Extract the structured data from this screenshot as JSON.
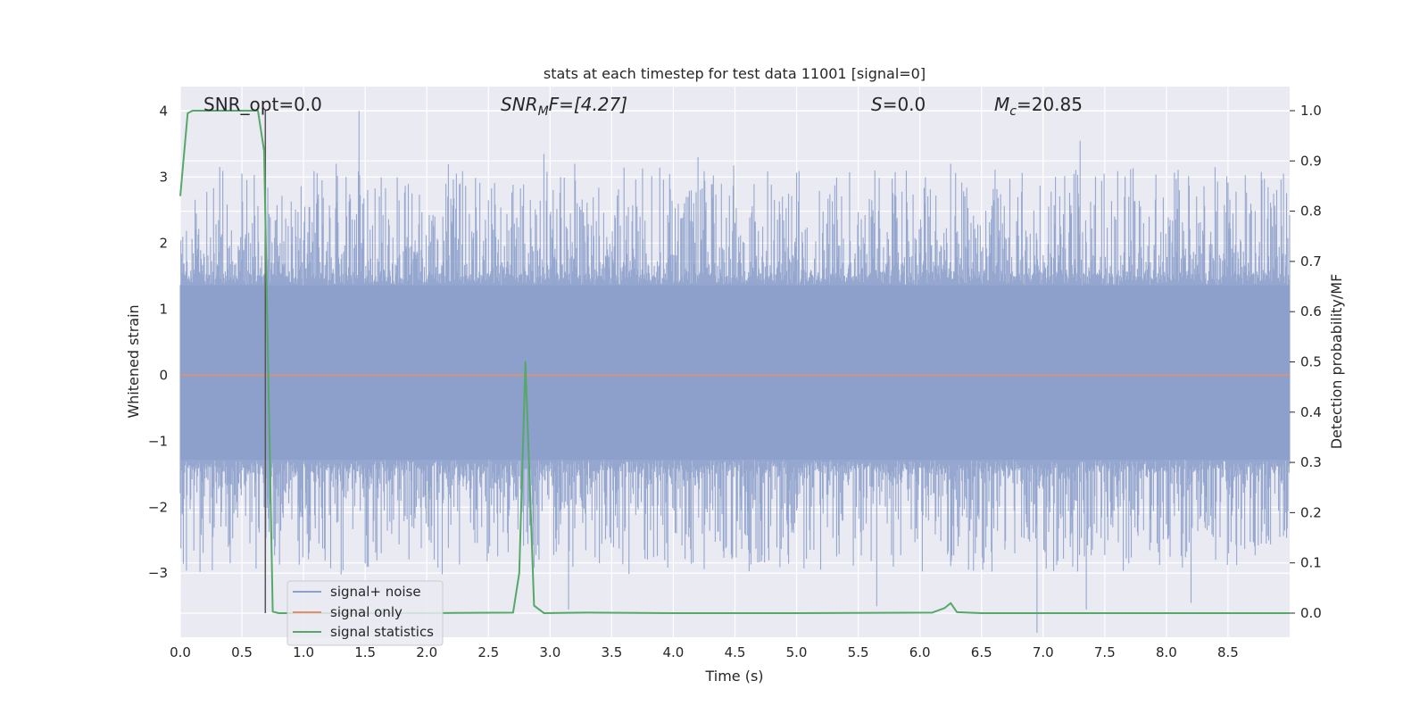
{
  "chart_data": {
    "type": "line",
    "title": "stats at each timestep for test data 11001 [signal=0]",
    "xlabel": "Time (s)",
    "ylabel_left": "Whitened strain",
    "ylabel_right": "Detection probability/MF",
    "xlim": [
      0.0,
      9.0
    ],
    "ylim_left": [
      -3.97,
      4.37
    ],
    "ylim_right": [
      -0.048,
      1.048
    ],
    "x_ticks": [
      "0.0",
      "0.5",
      "1.0",
      "1.5",
      "2.0",
      "2.5",
      "3.0",
      "3.5",
      "4.0",
      "4.5",
      "5.0",
      "5.5",
      "6.0",
      "6.5",
      "7.0",
      "7.5",
      "8.0",
      "8.5"
    ],
    "y_ticks_left": [
      "4",
      "3",
      "2",
      "1",
      "0",
      "−1",
      "−2",
      "−3"
    ],
    "y_ticks_right": [
      "1.0",
      "0.9",
      "0.8",
      "0.7",
      "0.6",
      "0.5",
      "0.4",
      "0.3",
      "0.2",
      "0.1",
      "0.0"
    ],
    "grid": true,
    "legend_position": "lower-left",
    "annotations": {
      "snr_opt": "SNR_opt=0.0",
      "snr_mf_main": "SNR",
      "snr_mf_sub": "M",
      "snr_mf_rest": "F=[4.27]",
      "s_italic": "S",
      "s_rest": "=0.0",
      "mc_main": "M",
      "mc_sub": "c",
      "mc_rest": "=20.85"
    },
    "marker_time": 0.69,
    "series": [
      {
        "name": "signal+ noise",
        "color": "#8da0cb",
        "description_of_values": "noise amplitude envelope",
        "envelope_hi": 1.7,
        "envelope_lo": -1.6,
        "peaks_hi": [
          {
            "x": 0.5,
            "y": 3.05
          },
          {
            "x": 1.45,
            "y": 4.0
          },
          {
            "x": 1.15,
            "y": 2.95
          },
          {
            "x": 2.95,
            "y": 3.35
          },
          {
            "x": 3.2,
            "y": 3.2
          },
          {
            "x": 4.2,
            "y": 3.3
          },
          {
            "x": 7.3,
            "y": 3.55
          },
          {
            "x": 8.95,
            "y": 3.05
          }
        ],
        "peaks_lo": [
          {
            "x": 1.5,
            "y": -2.85
          },
          {
            "x": 3.15,
            "y": -3.55
          },
          {
            "x": 5.65,
            "y": -3.5
          },
          {
            "x": 6.95,
            "y": -3.9
          },
          {
            "x": 7.35,
            "y": -3.55
          },
          {
            "x": 8.2,
            "y": -3.45
          }
        ]
      },
      {
        "name": "signal only",
        "color": "#e3906a",
        "x": [
          0.0,
          9.0
        ],
        "y": [
          0.0,
          0.0
        ]
      },
      {
        "name": "signal statistics",
        "color": "#55a868",
        "x": [
          0.0,
          0.06,
          0.1,
          0.15,
          0.3,
          0.5,
          0.63,
          0.68,
          0.75,
          0.8,
          1.0,
          2.0,
          2.7,
          2.75,
          2.8,
          2.87,
          2.95,
          3.3,
          4.0,
          5.0,
          6.1,
          6.2,
          6.25,
          6.3,
          6.5,
          8.0,
          9.0
        ],
        "y": [
          0.83,
          0.995,
          1.0,
          1.0,
          1.0,
          1.0,
          1.0,
          0.92,
          0.003,
          0.0,
          0.0,
          0.0,
          0.001,
          0.08,
          0.5,
          0.015,
          0.0,
          0.001,
          0.0,
          0.0,
          0.001,
          0.01,
          0.02,
          0.002,
          0.0,
          0.0,
          0.0
        ]
      }
    ]
  }
}
